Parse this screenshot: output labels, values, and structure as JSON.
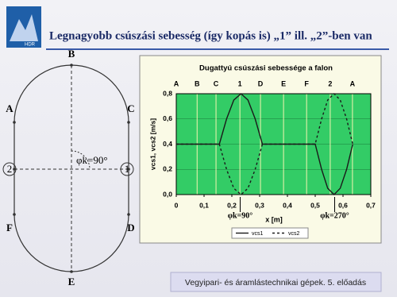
{
  "header": {
    "title": "Legnagyobb csúszási sebesség (így kopás is) „1” ill. „2”-ben van",
    "logo": "HDR"
  },
  "diagram": {
    "labels": [
      "B",
      "A",
      "C",
      "2",
      "1",
      "F",
      "D",
      "E"
    ],
    "angle_label": "φk=90°"
  },
  "chart_data": {
    "type": "line",
    "title": "Dugattyú csúszási sebessége a falon",
    "x_label": "x [m]",
    "y_label": "vcs1, vcs2 [m/s]",
    "categories": [
      "A",
      "B",
      "C",
      "1",
      "D",
      "E",
      "F",
      "2",
      "A"
    ],
    "category_x": [
      0,
      0.075,
      0.143,
      0.229,
      0.303,
      0.386,
      0.469,
      0.554,
      0.634
    ],
    "x": [
      0,
      0.155,
      0.181,
      0.207,
      0.233,
      0.258,
      0.284,
      0.31,
      0.5,
      0.523,
      0.545,
      0.568,
      0.59,
      0.613,
      0.635
    ],
    "series": [
      {
        "name": "vcs1",
        "color": "#1a1a1a",
        "dash": false,
        "values": [
          0.4,
          0.4,
          0.6,
          0.75,
          0.8,
          0.75,
          0.6,
          0.4,
          0.4,
          0.2,
          0.05,
          0,
          0.05,
          0.2,
          0.4
        ]
      },
      {
        "name": "vcs2",
        "color": "#1a1a1a",
        "dash": true,
        "values": [
          0.4,
          0.4,
          0.2,
          0.05,
          0,
          0.05,
          0.2,
          0.4,
          0.4,
          0.6,
          0.75,
          0.8,
          0.75,
          0.6,
          0.4
        ]
      }
    ],
    "xlim": [
      0,
      0.7
    ],
    "xticks": [
      0,
      {
        "value": 0.1,
        "label": "0,1"
      },
      {
        "value": 0.2,
        "label": "0,2"
      },
      {
        "value": 0.3,
        "label": "0,3"
      },
      {
        "value": 0.4,
        "label": "0,4"
      },
      {
        "value": 0.5,
        "label": "0,5"
      },
      {
        "value": 0.6,
        "label": "0,6"
      },
      {
        "value": 0.7,
        "label": "0,7"
      }
    ],
    "ylim": [
      0,
      0.8
    ],
    "yticks": [
      {
        "value": 0,
        "label": "0,0"
      },
      {
        "value": 0.2,
        "label": "0,2"
      },
      {
        "value": 0.4,
        "label": "0,4"
      },
      {
        "value": 0.6,
        "label": "0,6"
      },
      {
        "value": 0.8,
        "label": "0,8"
      }
    ],
    "annotations": [
      {
        "text": "φk=90°",
        "x": 0.23
      },
      {
        "text": "φk=270°",
        "x": 0.57
      }
    ],
    "plot_color": "#33cc66"
  },
  "footer": {
    "text": "Vegyipari- és áramlástechnikai gépek. 5. előadás"
  }
}
